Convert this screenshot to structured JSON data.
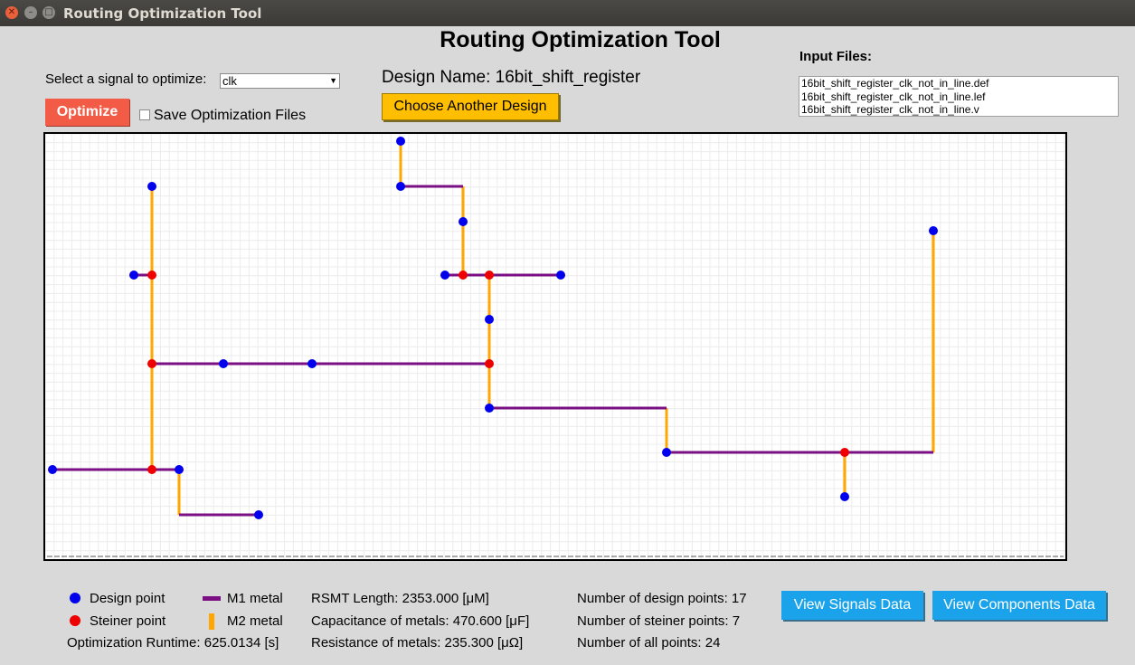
{
  "window": {
    "title": "Routing Optimization Tool"
  },
  "app": {
    "title": "Routing Optimization Tool",
    "signal_select_label": "Select a signal to optimize:",
    "signal_value": "clk",
    "optimize_label": "Optimize",
    "save_files_label": "Save Optimization Files",
    "save_files_checked": false,
    "design_name": "Design Name: 16bit_shift_register",
    "choose_design_label": "Choose Another Design",
    "input_files_label": "Input Files:",
    "input_files": [
      "16bit_shift_register_clk_not_in_line.def",
      "16bit_shift_register_clk_not_in_line.lef",
      "16bit_shift_register_clk_not_in_line.v"
    ]
  },
  "routing": {
    "colors": {
      "design_point": "#0000ee",
      "steiner_point": "#ee0000",
      "m1_metal": "#7b0f84",
      "m2_metal": "#ffa600",
      "grid": "#ececec"
    },
    "m1_segments": [
      [
        443,
        206,
        512,
        206
      ],
      [
        492,
        304,
        620,
        304
      ],
      [
        148,
        304,
        168,
        304
      ],
      [
        168,
        402,
        541,
        402
      ],
      [
        541,
        451,
        737,
        451
      ],
      [
        737,
        500,
        1032,
        500
      ],
      [
        58,
        519,
        198,
        519
      ],
      [
        198,
        569,
        286,
        569
      ]
    ],
    "m2_segments": [
      [
        443,
        156,
        443,
        206
      ],
      [
        512,
        206,
        512,
        304
      ],
      [
        541,
        304,
        541,
        451
      ],
      [
        168,
        206,
        168,
        519
      ],
      [
        198,
        519,
        198,
        569
      ],
      [
        737,
        451,
        737,
        500
      ],
      [
        1032,
        255,
        1032,
        500
      ],
      [
        934,
        500,
        934,
        549
      ]
    ],
    "design_points": [
      [
        443,
        156
      ],
      [
        443,
        206
      ],
      [
        512,
        245
      ],
      [
        492,
        304
      ],
      [
        620,
        304
      ],
      [
        541,
        353
      ],
      [
        541,
        451
      ],
      [
        168,
        206
      ],
      [
        148,
        304
      ],
      [
        247,
        402
      ],
      [
        345,
        402
      ],
      [
        58,
        519
      ],
      [
        198,
        519
      ],
      [
        286,
        569
      ],
      [
        737,
        500
      ],
      [
        934,
        549
      ],
      [
        1032,
        255
      ]
    ],
    "steiner_points": [
      [
        168,
        304
      ],
      [
        512,
        304
      ],
      [
        541,
        304
      ],
      [
        168,
        402
      ],
      [
        541,
        402
      ],
      [
        168,
        519
      ],
      [
        934,
        500
      ]
    ]
  },
  "legend": {
    "design_point": "Design point",
    "steiner_point": "Steiner point",
    "m1_metal": "M1 metal",
    "m2_metal": "M2 metal"
  },
  "stats": {
    "runtime": "Optimization Runtime: 625.0134 [s]",
    "rsmt_length": "RSMT Length: 2353.000 [μM]",
    "capacitance": "Capacitance of metals: 470.600 [μF]",
    "resistance": "Resistance of metals: 235.300 [μΩ]",
    "design_points_count": "Number of design points: 17",
    "steiner_points_count": "Number of steiner points: 7",
    "all_points_count": "Number of all points: 24"
  },
  "buttons": {
    "view_signals": "View Signals Data",
    "view_components": "View Components Data"
  }
}
